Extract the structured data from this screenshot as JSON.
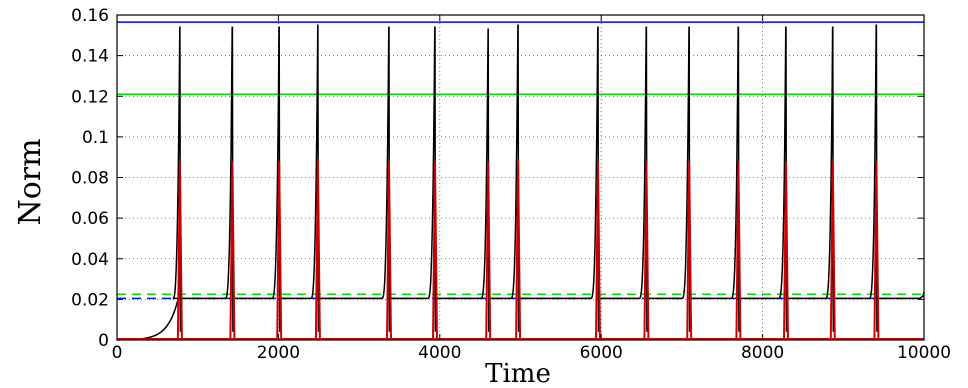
{
  "chart_data": {
    "type": "line",
    "xlabel": "Time",
    "ylabel": "Norm",
    "xlim": [
      0,
      10000
    ],
    "ylim": [
      0,
      0.16
    ],
    "grid": true,
    "x_ticks": [
      0,
      2000,
      4000,
      6000,
      8000,
      10000
    ],
    "x_tick_labels": [
      "0",
      "2000",
      "4000",
      "6000",
      "8000",
      "10000"
    ],
    "y_ticks": [
      0,
      0.02,
      0.04,
      0.06,
      0.08,
      0.1,
      0.12,
      0.14,
      0.16
    ],
    "y_tick_labels": [
      "0",
      "0.02",
      "0.04",
      "0.06",
      "0.08",
      "0.1",
      "0.12",
      "0.14",
      "0.16"
    ],
    "spike_times": [
      780,
      1430,
      2010,
      2490,
      3370,
      3940,
      4600,
      4970,
      5960,
      6560,
      7090,
      7700,
      8290,
      8870,
      9410
    ],
    "spike_peaks": [
      0.154,
      0.154,
      0.154,
      0.155,
      0.154,
      0.154,
      0.153,
      0.155,
      0.154,
      0.154,
      0.154,
      0.154,
      0.154,
      0.154,
      0.155
    ],
    "red_spike_peaks": [
      0.088,
      0.088,
      0.088,
      0.089,
      0.088,
      0.088,
      0.088,
      0.089,
      0.088,
      0.088,
      0.088,
      0.088,
      0.088,
      0.088,
      0.088
    ],
    "baseline": 0.0205,
    "series": [
      {
        "color": "#000000",
        "style": "solid",
        "kind": "spike-train"
      },
      {
        "color": "#cc0000",
        "style": "solid",
        "kind": "narrow-spikes"
      },
      {
        "color": "#0000ff",
        "style": "solid",
        "kind": "hline",
        "y": 0.1565
      },
      {
        "color": "#00dd00",
        "style": "solid",
        "kind": "hline",
        "y": 0.121
      },
      {
        "color": "#00dd00",
        "style": "dashed",
        "kind": "hline",
        "y": 0.0225
      },
      {
        "color": "#0000ff",
        "style": "dashed",
        "kind": "hline",
        "y": 0.0205
      }
    ]
  }
}
